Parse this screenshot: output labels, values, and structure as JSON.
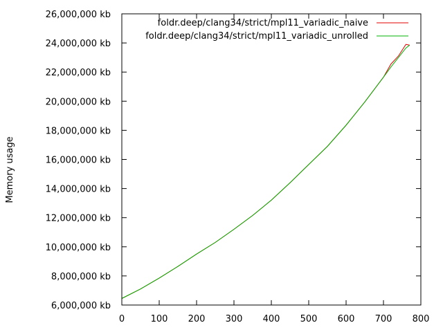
{
  "chart_data": {
    "type": "line",
    "title": "",
    "xlabel": "",
    "ylabel": "Memory usage",
    "xlim": [
      0,
      800
    ],
    "ylim": [
      6000000,
      26000000
    ],
    "grid": false,
    "legend_position": "top-right",
    "x_ticks": [
      0,
      100,
      200,
      300,
      400,
      500,
      600,
      700,
      800
    ],
    "x_tick_labels": [
      "0",
      "100",
      "200",
      "300",
      "400",
      "500",
      "600",
      "700",
      "800"
    ],
    "y_ticks": [
      6000000,
      8000000,
      10000000,
      12000000,
      14000000,
      16000000,
      18000000,
      20000000,
      22000000,
      24000000,
      26000000
    ],
    "y_tick_labels": [
      "6,000,000 kb",
      "8,000,000 kb",
      "10,000,000 kb",
      "12,000,000 kb",
      "14,000,000 kb",
      "16,000,000 kb",
      "18,000,000 kb",
      "20,000,000 kb",
      "22,000,000 kb",
      "24,000,000 kb",
      "26,000,000 kb"
    ],
    "series": [
      {
        "name": "foldr.deep/clang34/strict/mpl11_variadic_naive",
        "color": "#e00000",
        "x": [
          0,
          50,
          100,
          150,
          200,
          250,
          300,
          350,
          400,
          450,
          500,
          550,
          600,
          650,
          700,
          720,
          740,
          760,
          770
        ],
        "y": [
          6450000,
          7100000,
          7850000,
          8650000,
          9500000,
          10300000,
          11200000,
          12150000,
          13200000,
          14400000,
          15650000,
          16900000,
          18350000,
          19950000,
          21650000,
          22550000,
          23100000,
          23900000,
          23850000
        ]
      },
      {
        "name": "foldr.deep/clang34/strict/mpl11_variadic_unrolled",
        "color": "#00b000",
        "x": [
          0,
          50,
          100,
          150,
          200,
          250,
          300,
          350,
          400,
          450,
          500,
          550,
          600,
          650,
          700,
          720,
          740,
          760,
          770
        ],
        "y": [
          6450000,
          7100000,
          7850000,
          8650000,
          9500000,
          10300000,
          11200000,
          12150000,
          13200000,
          14400000,
          15650000,
          16900000,
          18350000,
          19950000,
          21650000,
          22350000,
          23000000,
          23650000,
          23850000
        ]
      }
    ]
  }
}
